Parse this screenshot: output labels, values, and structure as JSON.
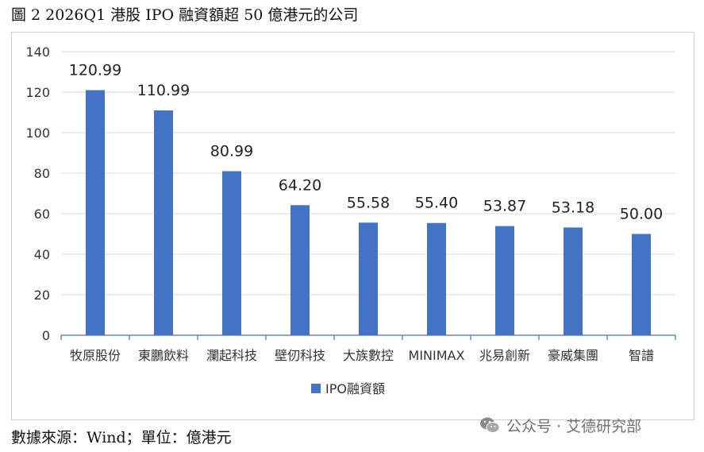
{
  "figure_title": "圖 2 2026Q1 港股 IPO 融資額超 50 億港元的公司",
  "source_note": "數據來源：Wind；單位：億港元",
  "watermark": {
    "text": "公众号 · 艾德研究部",
    "icon": "wechat-logo-icon"
  },
  "colors": {
    "bar": "#4472C4",
    "grid": "#d9d9d9",
    "axis": "#4472C4"
  },
  "chart_data": {
    "type": "bar",
    "title": "",
    "xlabel": "",
    "ylabel": "",
    "categories": [
      "牧原股份",
      "東鵬飲料",
      "瀾起科技",
      "壁仞科技",
      "大族數控",
      "MINIMAX",
      "兆易創新",
      "豪威集團",
      "智譜"
    ],
    "series": [
      {
        "name": "IPO融資額",
        "values": [
          120.99,
          110.99,
          80.99,
          64.2,
          55.58,
          55.4,
          53.87,
          53.18,
          50.0
        ]
      }
    ],
    "data_labels": [
      "120.99",
      "110.99",
      "80.99",
      "64.20",
      "55.58",
      "55.40",
      "53.87",
      "53.18",
      "50.00"
    ],
    "ylim": [
      0,
      140
    ],
    "yticks": [
      "0",
      "20",
      "40",
      "60",
      "80",
      "100",
      "120",
      "140"
    ],
    "grid": true,
    "legend_position": "bottom"
  }
}
